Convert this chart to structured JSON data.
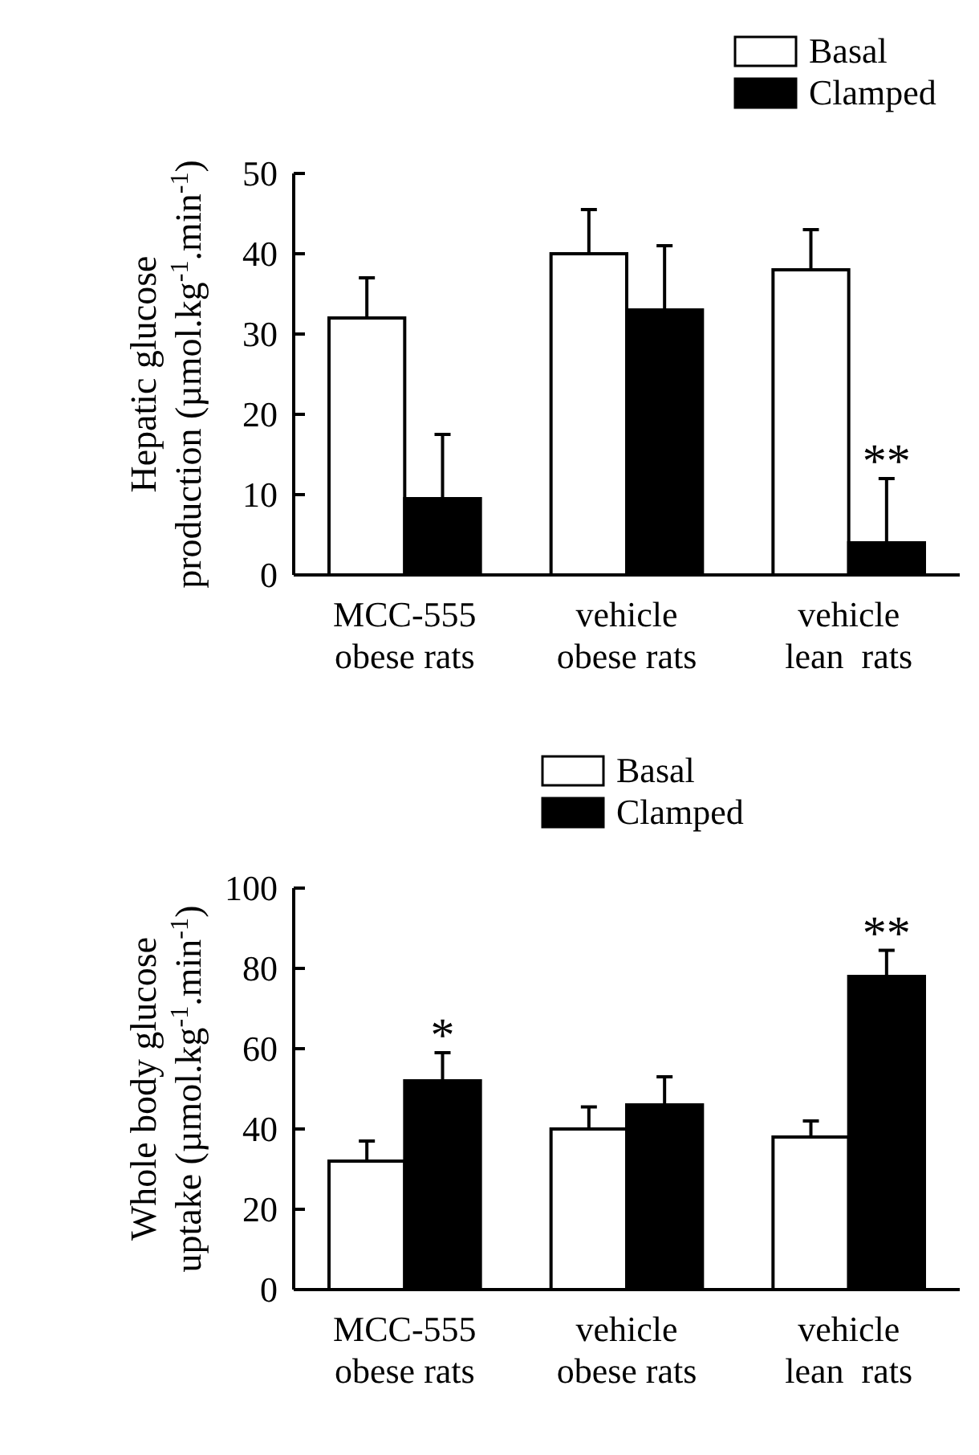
{
  "chart_data": [
    {
      "type": "bar",
      "ylabel": "Hepatic glucose\nproduction (µmol.kg$^{-1}$.min$^{-1}$)",
      "categories": [
        "MCC-555\nobese rats",
        "vehicle\nobese rats",
        "vehicle\nlean  rats"
      ],
      "series": [
        {
          "name": "Basal",
          "color": "#ffffff",
          "values": [
            32,
            40,
            38
          ],
          "errors": [
            5,
            5.5,
            5
          ]
        },
        {
          "name": "Clamped",
          "color": "#000000",
          "values": [
            9.5,
            33,
            4
          ],
          "errors": [
            8,
            8,
            8
          ]
        }
      ],
      "ylim": [
        0,
        50
      ],
      "yticks": [
        0,
        10,
        20,
        30,
        40,
        50
      ],
      "legend": "top right",
      "annotations": [
        {
          "text": "**",
          "x": "vehicle\nlean  rats",
          "y": 4
        }
      ]
    },
    {
      "type": "bar",
      "ylabel": "Whole body glucose\nuptake (µmol.kg$^{-1}$.min$^{-1}$)",
      "categories": [
        "MCC-555\nobese rats",
        "vehicle\nobese rats",
        "vehicle\nlean  rats"
      ],
      "series": [
        {
          "name": "Basal",
          "color": "#ffffff",
          "values": [
            32,
            40,
            38
          ],
          "errors": [
            5,
            5.5,
            4
          ]
        },
        {
          "name": "Clamped",
          "color": "#000000",
          "values": [
            52,
            46,
            78
          ],
          "errors": [
            7,
            7,
            6.5
          ]
        }
      ],
      "ylim": [
        0,
        100
      ],
      "yticks": [
        0,
        20,
        40,
        60,
        80,
        100
      ],
      "legend": "top",
      "annotations": [
        {
          "text": "*",
          "x": "MCC-555\nobese rats",
          "y": 52
        },
        {
          "text": "**",
          "x": "vehicle\nlean  rats",
          "y": 78
        }
      ]
    }
  ]
}
